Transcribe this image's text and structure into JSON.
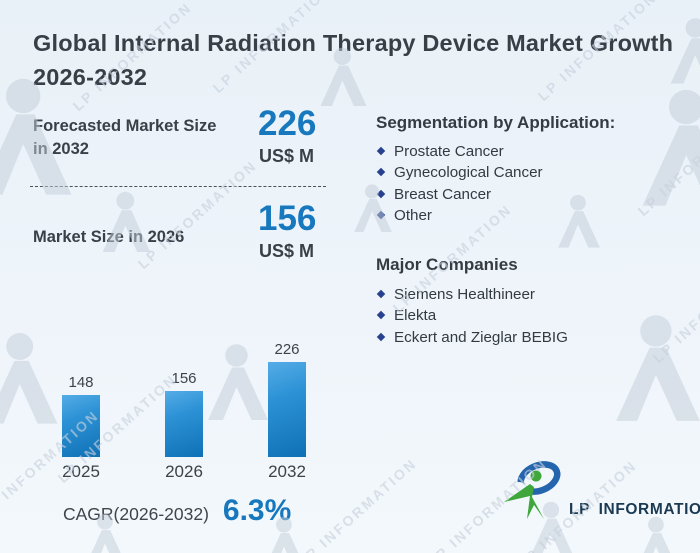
{
  "title": "Global Internal Radiation Therapy Device Market Growth 2026-2032",
  "stats": {
    "forecast_label": "Forecasted Market Size in 2032",
    "forecast_value": "226",
    "forecast_unit": "US$ M",
    "current_label": "Market Size in 2026",
    "current_value": "156",
    "current_unit": "US$ M"
  },
  "segmentation": {
    "heading": "Segmentation by Application:",
    "items": [
      "Prostate Cancer",
      "Gynecological Cancer",
      "Breast Cancer",
      "Other"
    ]
  },
  "companies": {
    "heading": "Major Companies",
    "items": [
      "Siemens Healthineer",
      "Elekta",
      "Eckert and Zieglar BEBIG"
    ]
  },
  "chart_data": {
    "type": "bar",
    "categories": [
      "2025",
      "2026",
      "2032"
    ],
    "values": [
      148,
      156,
      226
    ],
    "title": "",
    "xlabel": "",
    "ylabel": "",
    "ylim": [
      0,
      240
    ],
    "grid": false,
    "legend": false,
    "bar_color_top": "#55ace6",
    "bar_color_bottom": "#0f70b5"
  },
  "cagr": {
    "label": "CAGR(2026-2032)",
    "value": "6.3%"
  },
  "logo": {
    "text": "LP INFORMATION"
  },
  "watermark": {
    "text": "LP INFORMATION"
  },
  "colors": {
    "accent_blue": "#1778be",
    "text_dark": "#3a4047",
    "bullet_navy": "#27418e",
    "background": "#eef4fa",
    "logo_green": "#3fa73c",
    "logo_blue": "#2565ad",
    "logo_text": "#1b3a52",
    "watermark_gray": "#cdd6e0"
  }
}
